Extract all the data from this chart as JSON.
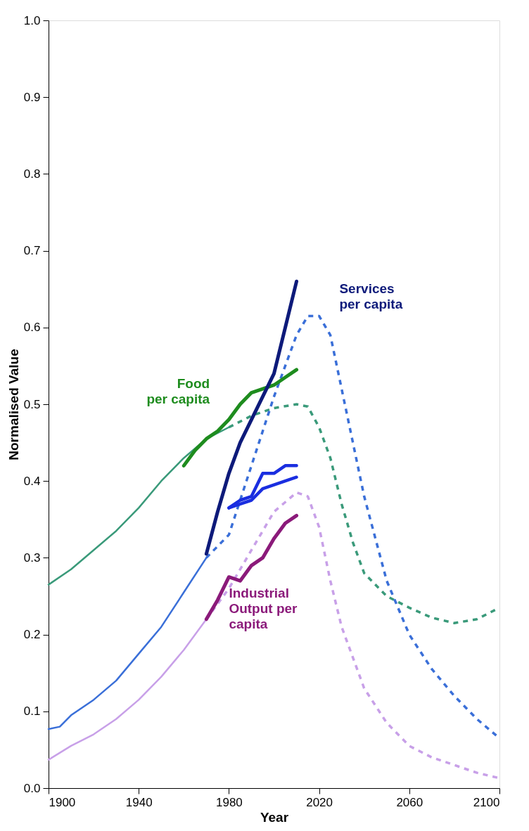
{
  "chart_data": {
    "type": "line",
    "xlabel": "Year",
    "ylabel": "Normalised Value",
    "xlim": [
      1900,
      2100
    ],
    "xticks": [
      1900,
      1940,
      1980,
      2020,
      2060,
      2100
    ],
    "ylim": [
      0,
      1
    ],
    "yticks": [
      {
        "value": 0,
        "label": "0.0"
      },
      0.1,
      0.2,
      0.3,
      0.4,
      0.5,
      0.6,
      0.7,
      0.8,
      0.9,
      {
        "value": 1,
        "label": "1.0"
      }
    ],
    "grid": false,
    "marker": "none",
    "series": [
      {
        "color": "#3a9a7a",
        "line_style": "solid",
        "x": [
          1900,
          1910,
          1920,
          1930,
          1940,
          1950,
          1960,
          1970,
          1980
        ],
        "values": [
          0.265,
          0.285,
          0.31,
          0.335,
          0.365,
          0.4,
          0.43,
          0.455,
          0.47
        ]
      },
      {
        "color": "#3a9a7a",
        "line_style": "dashed",
        "x": [
          1980,
          1990,
          2000,
          2010,
          2015,
          2020,
          2025,
          2030,
          2035,
          2040,
          2050,
          2060,
          2070,
          2080,
          2090,
          2100
        ],
        "values": [
          0.47,
          0.485,
          0.495,
          0.5,
          0.497,
          0.47,
          0.43,
          0.37,
          0.32,
          0.28,
          0.25,
          0.235,
          0.222,
          0.215,
          0.22,
          0.235
        ]
      },
      {
        "color": "#3a6fd8",
        "line_style": "solid",
        "x": [
          1900,
          1905,
          1910,
          1920,
          1930,
          1940,
          1950,
          1960,
          1970
        ],
        "values": [
          0.077,
          0.08,
          0.095,
          0.115,
          0.14,
          0.175,
          0.21,
          0.255,
          0.3
        ]
      },
      {
        "color": "#3a6fd8",
        "line_style": "dashed",
        "x": [
          1970,
          1980,
          1990,
          2000,
          2010,
          2015,
          2020,
          2025,
          2030,
          2040,
          2050,
          2060,
          2070,
          2080,
          2090,
          2100
        ],
        "values": [
          0.3,
          0.33,
          0.42,
          0.51,
          0.59,
          0.615,
          0.615,
          0.59,
          0.52,
          0.38,
          0.27,
          0.2,
          0.155,
          0.12,
          0.09,
          0.065
        ]
      },
      {
        "color": "#c8a0e8",
        "line_style": "solid",
        "x": [
          1900,
          1910,
          1920,
          1930,
          1940,
          1950,
          1960,
          1970
        ],
        "values": [
          0.037,
          0.055,
          0.07,
          0.09,
          0.115,
          0.145,
          0.18,
          0.22
        ]
      },
      {
        "color": "#c8a0e8",
        "line_style": "dashed",
        "x": [
          1970,
          1980,
          1990,
          2000,
          2010,
          2015,
          2020,
          2025,
          2030,
          2040,
          2050,
          2060,
          2070,
          2080,
          2090,
          2100
        ],
        "values": [
          0.22,
          0.26,
          0.31,
          0.36,
          0.385,
          0.38,
          0.34,
          0.27,
          0.21,
          0.13,
          0.085,
          0.055,
          0.04,
          0.03,
          0.02,
          0.013
        ]
      },
      {
        "color": "#1a2ee0",
        "line_style": "solid",
        "x": [
          1980,
          1985,
          1990,
          1995,
          2000,
          2005,
          2010
        ],
        "values": [
          0.365,
          0.375,
          0.38,
          0.41,
          0.41,
          0.42,
          0.42
        ]
      },
      {
        "color": "#1a2ee0",
        "line_style": "solid",
        "x": [
          1980,
          1985,
          1990,
          1995,
          2000,
          2005,
          2010
        ],
        "values": [
          0.365,
          0.37,
          0.375,
          0.39,
          0.395,
          0.4,
          0.405
        ]
      },
      {
        "name": "Food\nper capita",
        "color": "#1e8c1e",
        "line_style": "solid",
        "x": [
          1960,
          1965,
          1970,
          1975,
          1980,
          1985,
          1990,
          1995,
          2000,
          2005,
          2010
        ],
        "values": [
          0.42,
          0.44,
          0.455,
          0.465,
          0.48,
          0.5,
          0.515,
          0.52,
          0.525,
          0.535,
          0.545
        ]
      },
      {
        "name": "Services\nper capita",
        "color": "#0d1a7a",
        "line_style": "solid",
        "x": [
          1970,
          1975,
          1980,
          1985,
          1990,
          1995,
          2000,
          2005,
          2010
        ],
        "values": [
          0.305,
          0.36,
          0.41,
          0.45,
          0.48,
          0.51,
          0.54,
          0.6,
          0.66
        ]
      },
      {
        "name": "Industrial\nOutput per\ncapita",
        "color": "#8b1a7a",
        "line_style": "solid",
        "x": [
          1970,
          1975,
          1980,
          1985,
          1990,
          1995,
          2000,
          2005,
          2010
        ],
        "values": [
          0.22,
          0.245,
          0.275,
          0.27,
          0.29,
          0.3,
          0.325,
          0.345,
          0.355
        ]
      }
    ]
  }
}
